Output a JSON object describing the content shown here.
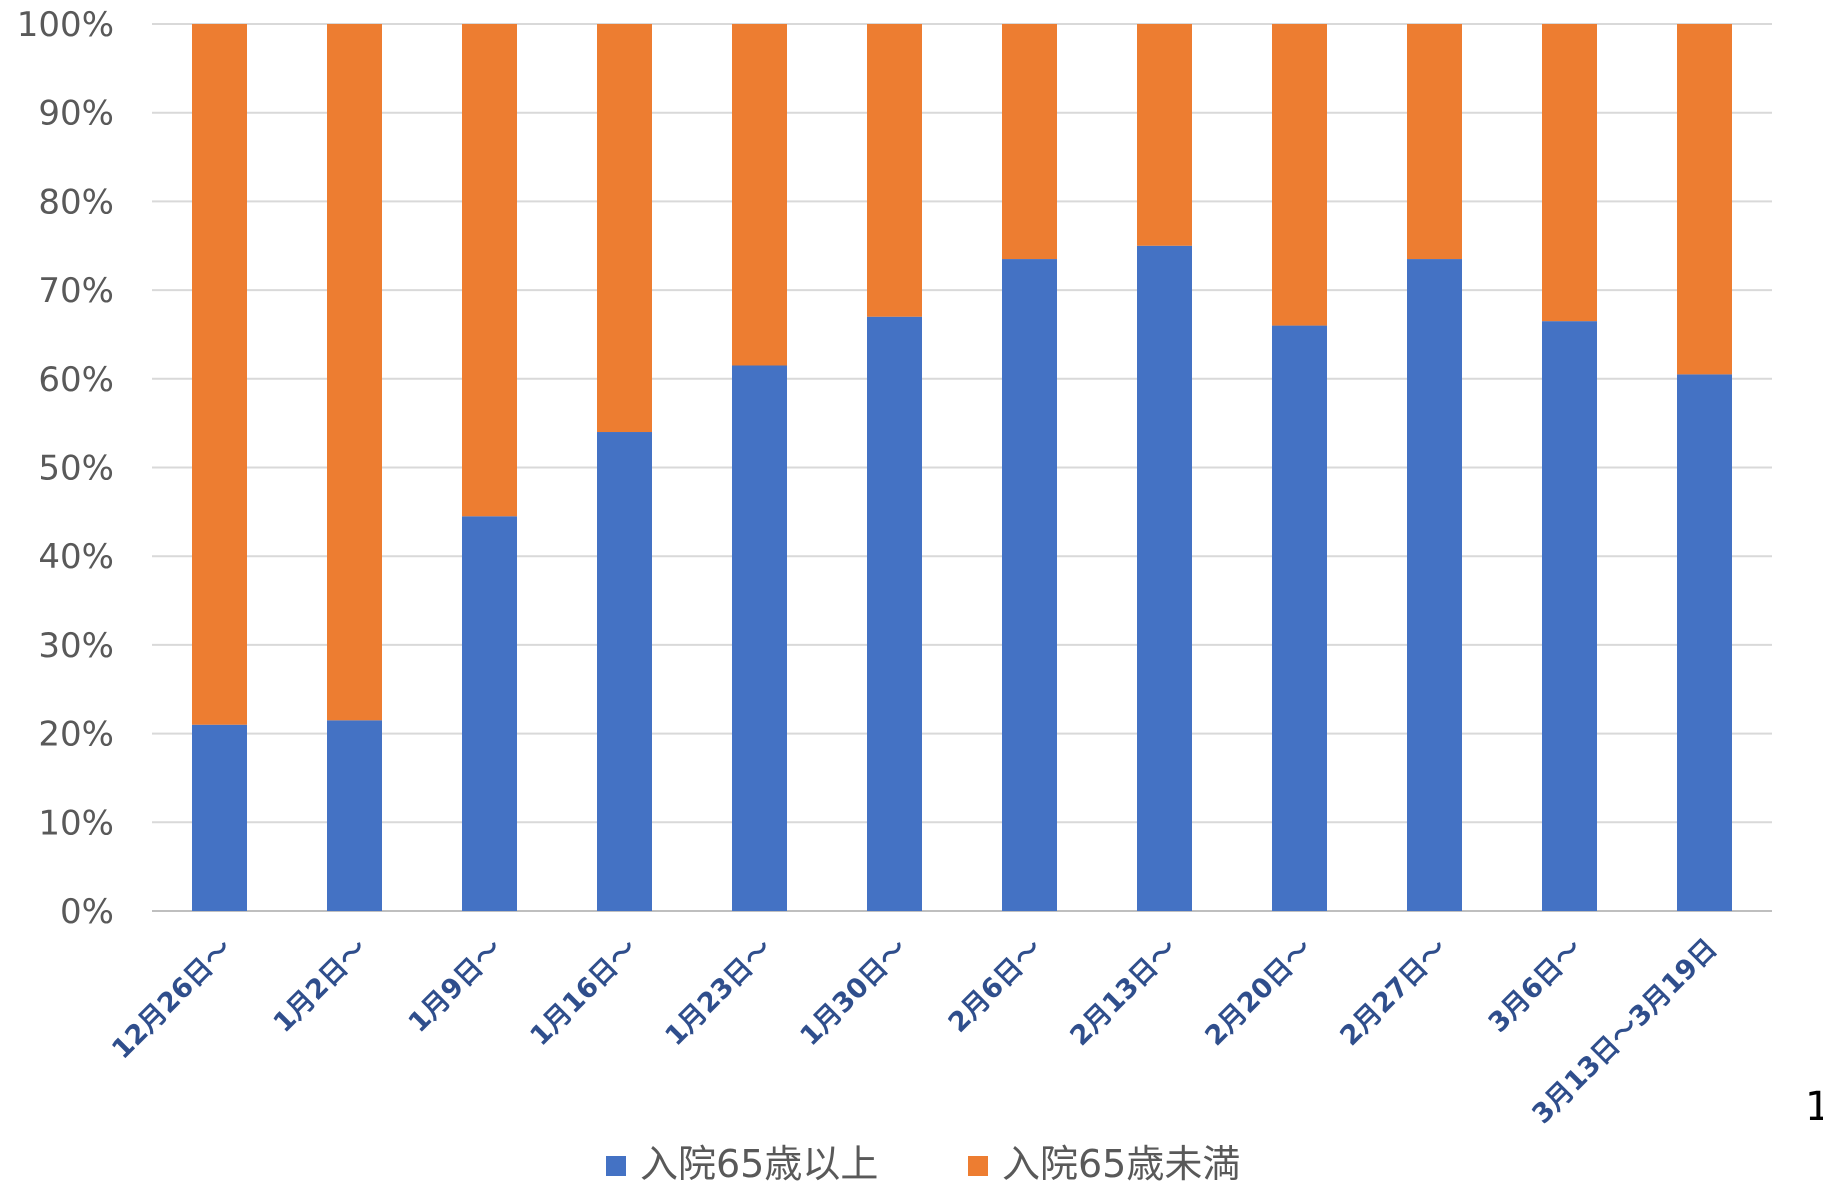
{
  "chart_data": {
    "type": "bar",
    "stacked": true,
    "categories": [
      "12月26日～",
      "1月2日～",
      "1月9日～",
      "1月16日～",
      "1月23日～",
      "1月30日～",
      "2月6日～",
      "2月13日～",
      "2月20日～",
      "2月27日～",
      "3月6日～",
      "3月13日～3月19日"
    ],
    "series": [
      {
        "name": "入院65歳以上",
        "color": "#4472C4",
        "values": [
          21,
          21.5,
          44.5,
          54,
          61.5,
          67,
          73.5,
          75,
          66,
          73.5,
          66.5,
          60.5
        ]
      },
      {
        "name": "入院65歳未満",
        "color": "#ED7D31",
        "values": [
          79,
          78.5,
          55.5,
          46,
          38.5,
          33,
          26.5,
          25,
          34,
          26.5,
          33.5,
          39.5
        ]
      }
    ],
    "yticks": [
      "0%",
      "10%",
      "20%",
      "30%",
      "40%",
      "50%",
      "60%",
      "70%",
      "80%",
      "90%",
      "100%"
    ],
    "ylim": [
      0,
      100
    ],
    "grid": true,
    "legend_position": "bottom",
    "xlabel": "",
    "ylabel": "",
    "title": ""
  },
  "edge_text": "1"
}
